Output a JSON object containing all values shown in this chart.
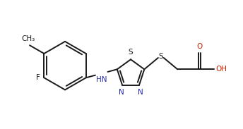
{
  "bg_color": "#ffffff",
  "line_color": "#1a1a1a",
  "n_color": "#2828b0",
  "o_color": "#cc2200",
  "lw": 1.4,
  "fs": 7.5,
  "xlim": [
    0.0,
    10.5
  ],
  "ylim": [
    0.5,
    6.0
  ]
}
